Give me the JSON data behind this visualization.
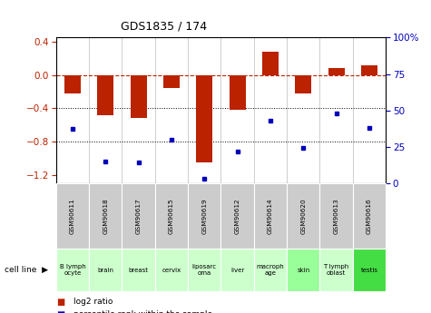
{
  "title": "GDS1835 / 174",
  "gsm_labels": [
    "GSM90611",
    "GSM90618",
    "GSM90617",
    "GSM90615",
    "GSM90619",
    "GSM90612",
    "GSM90614",
    "GSM90620",
    "GSM90613",
    "GSM90616"
  ],
  "cell_lines": [
    "B lymph\nocyte",
    "brain",
    "breast",
    "cervix",
    "liposarc\noma",
    "liver",
    "macroph\nage",
    "skin",
    "T lymph\noblast",
    "testis"
  ],
  "cell_colors": [
    "#ccffcc",
    "#ccffcc",
    "#ccffcc",
    "#ccffcc",
    "#ccffcc",
    "#ccffcc",
    "#ccffcc",
    "#99ff99",
    "#ccffcc",
    "#44dd44"
  ],
  "log2_ratio": [
    -0.22,
    -0.48,
    -0.52,
    -0.16,
    -1.05,
    -0.42,
    0.28,
    -0.22,
    0.08,
    0.12
  ],
  "pct_rank": [
    37,
    15,
    14,
    30,
    3,
    22,
    43,
    24,
    48,
    38
  ],
  "bar_color": "#bb2200",
  "dot_color": "#0000bb",
  "ylim_left": [
    -1.3,
    0.45
  ],
  "ylim_right": [
    0,
    100
  ],
  "yticks_left": [
    0.4,
    0.0,
    -0.4,
    -0.8,
    -1.2
  ],
  "yticks_right": [
    100,
    75,
    50,
    25,
    0
  ],
  "dotted_lines": [
    -0.4,
    -0.8
  ],
  "background_color": "#ffffff"
}
